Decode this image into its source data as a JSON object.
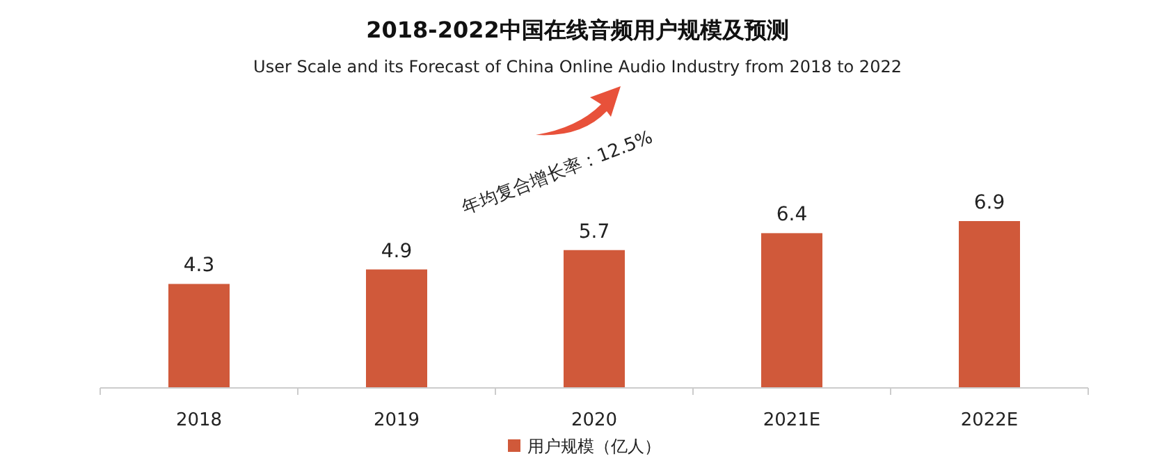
{
  "chart_data": {
    "type": "bar",
    "title": "2018-2022中国在线音频用户规模及预测",
    "subtitle": "User Scale and its Forecast of China Online Audio Industry from 2018 to 2022",
    "categories": [
      "2018",
      "2019",
      "2020",
      "2021E",
      "2022E"
    ],
    "series": [
      {
        "name": "用户规模（亿人）",
        "color": "#d0593a",
        "values": [
          4.3,
          4.9,
          5.7,
          6.4,
          6.9
        ]
      }
    ],
    "data_labels": true,
    "legend": "bottom",
    "annotations": [
      "年均复合增长率：12.5%"
    ]
  }
}
